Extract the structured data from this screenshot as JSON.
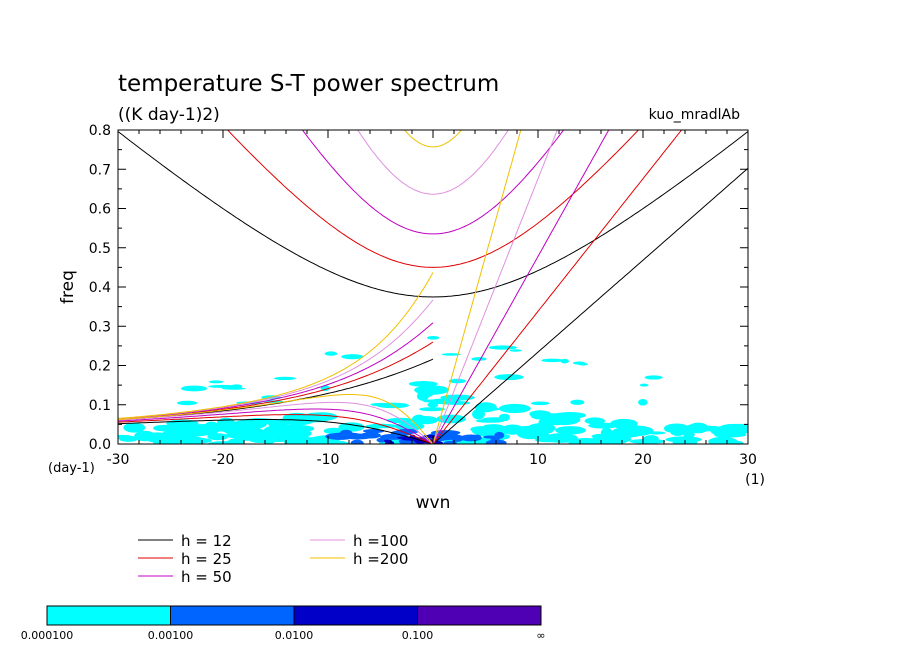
{
  "chart_data": {
    "type": "contour",
    "title": "temperature S-T power spectrum",
    "subtitle": "((K day-1)2)",
    "experiment": "kuo_mradlAb",
    "xlabel": "wvn",
    "ylabel": "freq",
    "x_unit": "(1)",
    "y_unit": "(day-1)",
    "xlim": [
      -30,
      30
    ],
    "ylim": [
      0,
      0.8
    ],
    "xticks": [
      "-30",
      "-20",
      "-10",
      "0",
      "10",
      "20",
      "30"
    ],
    "yticks": [
      "0.0",
      "0.1",
      "0.2",
      "0.3",
      "0.4",
      "0.5",
      "0.6",
      "0.7",
      "0.8"
    ],
    "series": [
      {
        "name": "h = 12",
        "h": 12,
        "color": "#000000"
      },
      {
        "name": "h = 25",
        "h": 25,
        "color": "#e00000"
      },
      {
        "name": "h = 50",
        "h": 50,
        "color": "#c000c0"
      },
      {
        "name": "h =100",
        "h": 100,
        "color": "#e090e0"
      },
      {
        "name": "h =200",
        "h": 200,
        "color": "#f0c000"
      }
    ],
    "colorbar": {
      "labels": [
        "0.000100",
        "0.00100",
        "0.0100",
        "0.100",
        "∞"
      ],
      "colors": [
        "#00ffff",
        "#0064ff",
        "#0000c8",
        "#5000b4"
      ]
    }
  }
}
